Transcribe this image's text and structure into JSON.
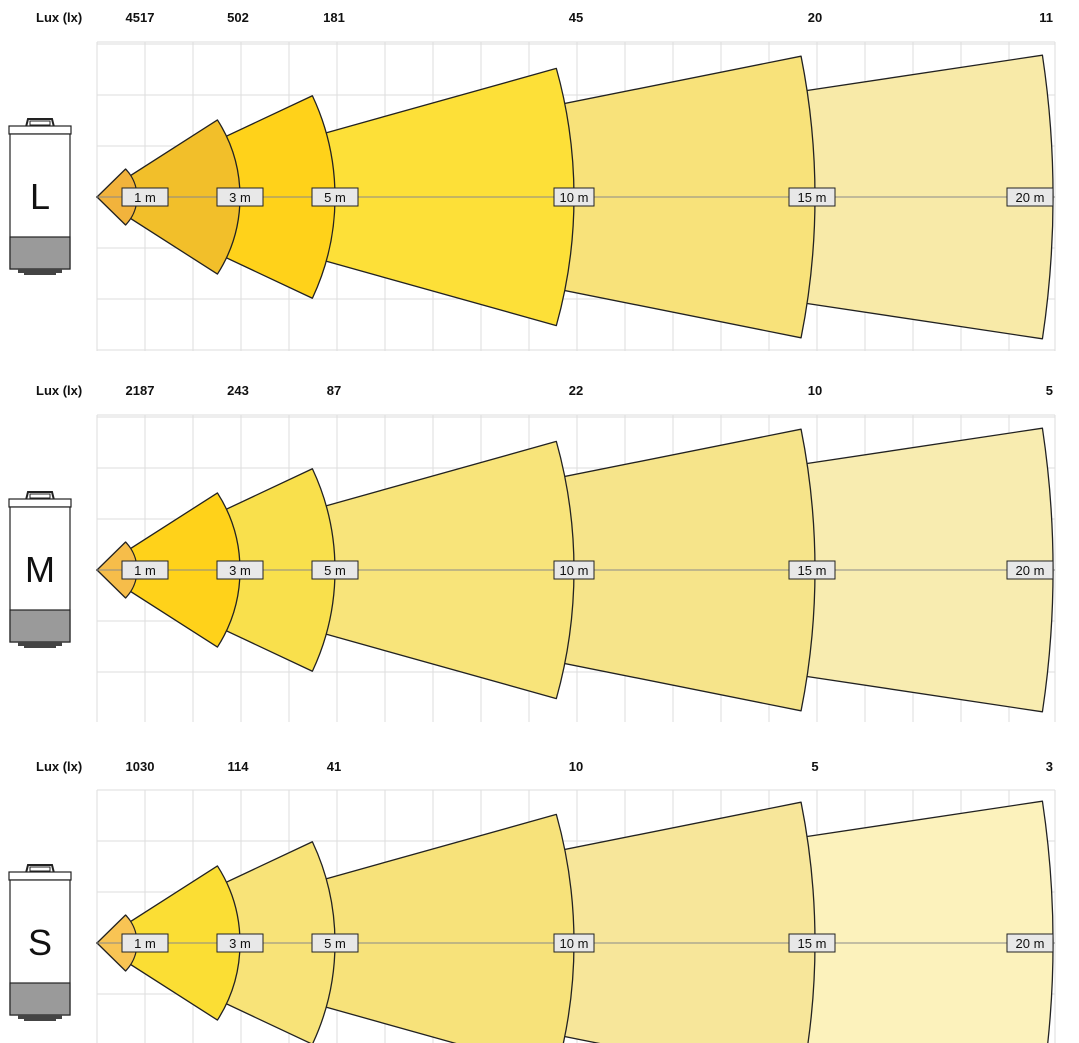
{
  "chart_data": {
    "type": "beam-spread",
    "lux_header": "Lux (lx)",
    "distance_labels": [
      "1 m",
      "3 m",
      "5 m",
      "10 m",
      "15 m",
      "20 m"
    ],
    "panels": [
      {
        "size_label": "L",
        "lux_values": [
          "4517",
          "502",
          "181",
          "45",
          "20",
          "11"
        ],
        "band_colors": [
          "#f2b33c",
          "#f2bf2a",
          "#ffd21a",
          "#fde038",
          "#f8e27a",
          "#f8eaa8"
        ]
      },
      {
        "size_label": "M",
        "lux_values": [
          "2187",
          "243",
          "87",
          "22",
          "10",
          "5"
        ],
        "band_colors": [
          "#f6bd4a",
          "#ffd21a",
          "#f9e04c",
          "#f8e47a",
          "#f6e48a",
          "#f8ecb0"
        ]
      },
      {
        "size_label": "S",
        "lux_values": [
          "1030",
          "114",
          "41",
          "10",
          "5",
          "3"
        ],
        "band_colors": [
          "#f8c454",
          "#fbde34",
          "#f8e378",
          "#f7e27a",
          "#f7e69a",
          "#fcf2bc"
        ]
      }
    ]
  }
}
